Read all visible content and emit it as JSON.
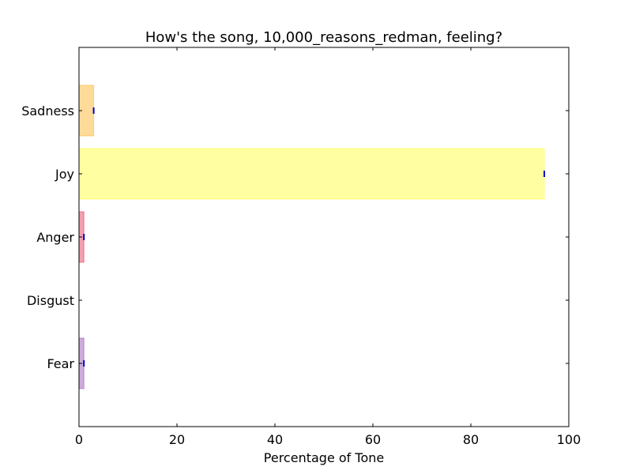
{
  "chart_data": {
    "type": "bar",
    "orientation": "horizontal",
    "title": "How's the song, 10,000_reasons_redman, feeling?",
    "xlabel": "Percentage of Tone",
    "ylabel": "",
    "xlim": [
      0,
      100
    ],
    "x_ticks": [
      "0",
      "20",
      "40",
      "60",
      "80",
      "100"
    ],
    "categories": [
      "Fear",
      "Disgust",
      "Anger",
      "Joy",
      "Sadness"
    ],
    "values": [
      1,
      0,
      1,
      95,
      3
    ],
    "colors": [
      "#9b59b6",
      "#8b8b00",
      "#e84060",
      "#ffff44",
      "#ffb733"
    ],
    "error_marker_color": "#0000cc",
    "grid": false,
    "legend": "none"
  }
}
